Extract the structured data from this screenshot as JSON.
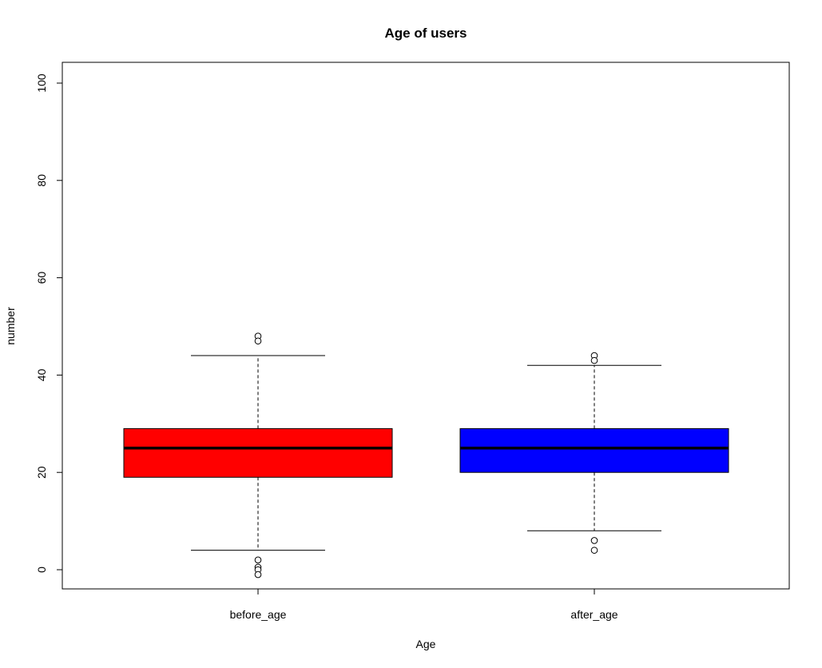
{
  "chart_data": {
    "type": "boxplot",
    "title": "Age of users",
    "xlabel": "Age",
    "ylabel": "number",
    "ylim": [
      -4,
      100
    ],
    "yticks": [
      0,
      20,
      40,
      60,
      80,
      100
    ],
    "grid": false,
    "legend": "none",
    "series": [
      {
        "category": "before_age",
        "color": "#ff0000",
        "whisker_low": 4,
        "q1": 19,
        "median": 25,
        "q3": 29,
        "whisker_high": 44,
        "outliers": [
          48,
          47,
          2,
          0.5,
          0,
          -1
        ]
      },
      {
        "category": "after_age",
        "color": "#0000ff",
        "whisker_low": 8,
        "q1": 20,
        "median": 25,
        "q3": 29,
        "whisker_high": 42,
        "outliers": [
          44,
          43,
          6,
          4
        ]
      }
    ]
  }
}
